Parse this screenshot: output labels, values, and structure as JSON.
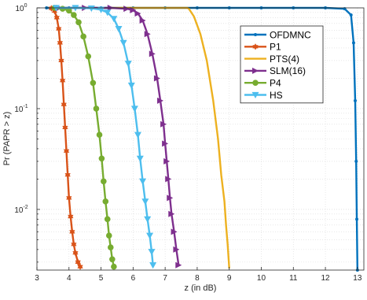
{
  "chart_data": {
    "type": "line",
    "title": "",
    "xlabel": "z (in dB)",
    "ylabel": "Pr (PAPR > z)",
    "xlim": [
      3,
      13.2
    ],
    "ylim": [
      0.0025,
      1
    ],
    "yscale": "log",
    "grid": true,
    "legend_position": "top-right",
    "x_ticks": [
      3,
      4,
      5,
      6,
      7,
      8,
      9,
      10,
      11,
      12,
      13
    ],
    "x_tick_labels": [
      "3",
      "4",
      "5",
      "6",
      "7",
      "8",
      "9",
      "10",
      "11",
      "12",
      "13"
    ],
    "y_ticks": [
      0.01,
      0.1,
      1
    ],
    "y_tick_base": "10",
    "y_tick_exponents": [
      "-2",
      "-1",
      "0"
    ],
    "series": [
      {
        "name": "OFDMNC",
        "color": "#0072bd",
        "marker": "dot",
        "x": [
          3.3,
          4,
          5,
          6,
          7,
          8,
          9,
          10,
          11,
          12,
          12.6,
          12.8,
          12.88,
          12.93,
          12.96,
          12.98,
          13.0
        ],
        "y": [
          1,
          1,
          1,
          1,
          1,
          1,
          1,
          1,
          1,
          1,
          0.98,
          0.85,
          0.45,
          0.12,
          0.03,
          0.008,
          0.0025
        ]
      },
      {
        "name": "P1",
        "color": "#d95319",
        "marker": "hexagram",
        "x": [
          3.45,
          3.55,
          3.62,
          3.68,
          3.72,
          3.76,
          3.8,
          3.84,
          3.88,
          3.92,
          3.96,
          4.0,
          4.05,
          4.1,
          4.15,
          4.2,
          4.28,
          4.35
        ],
        "y": [
          0.99,
          0.93,
          0.8,
          0.62,
          0.45,
          0.3,
          0.19,
          0.11,
          0.065,
          0.038,
          0.022,
          0.013,
          0.0085,
          0.006,
          0.0045,
          0.0037,
          0.003,
          0.0027
        ]
      },
      {
        "name": "PTS(4)",
        "color": "#edb120",
        "marker": "none",
        "x": [
          5.3,
          6,
          7,
          7.7,
          7.75,
          7.9,
          8.1,
          8.3,
          8.5,
          8.65,
          8.75,
          8.85,
          8.9,
          8.95,
          9.0
        ],
        "y": [
          1,
          1,
          1,
          1,
          0.97,
          0.82,
          0.55,
          0.3,
          0.12,
          0.05,
          0.022,
          0.012,
          0.007,
          0.0045,
          0.0026
        ]
      },
      {
        "name": "SLM(16)",
        "color": "#7e2f8e",
        "marker": "triangle-right",
        "x": [
          3.7,
          4.5,
          5.3,
          5.8,
          6.0,
          6.15,
          6.3,
          6.45,
          6.6,
          6.75,
          6.85,
          6.95,
          7.0,
          7.05,
          7.1,
          7.15,
          7.2,
          7.28,
          7.35,
          7.42
        ],
        "y": [
          1,
          1,
          1,
          0.98,
          0.95,
          0.88,
          0.75,
          0.55,
          0.35,
          0.2,
          0.12,
          0.07,
          0.045,
          0.03,
          0.02,
          0.013,
          0.009,
          0.006,
          0.004,
          0.0028
        ]
      },
      {
        "name": "P4",
        "color": "#77ac30",
        "marker": "circle",
        "x": [
          3.55,
          3.8,
          4.0,
          4.15,
          4.3,
          4.45,
          4.6,
          4.75,
          4.85,
          4.95,
          5.02,
          5.08,
          5.14,
          5.2,
          5.25,
          5.3,
          5.35,
          5.4
        ],
        "y": [
          1,
          0.98,
          0.94,
          0.85,
          0.72,
          0.52,
          0.33,
          0.18,
          0.1,
          0.055,
          0.032,
          0.019,
          0.012,
          0.008,
          0.0055,
          0.0042,
          0.0032,
          0.0027
        ]
      },
      {
        "name": "HS",
        "color": "#4dbeee",
        "marker": "triangle-down",
        "x": [
          3.6,
          4.2,
          4.7,
          5.0,
          5.2,
          5.4,
          5.55,
          5.7,
          5.85,
          5.95,
          6.05,
          6.15,
          6.22,
          6.3,
          6.38,
          6.45,
          6.52,
          6.58,
          6.62
        ],
        "y": [
          1,
          1,
          0.99,
          0.96,
          0.9,
          0.78,
          0.62,
          0.45,
          0.28,
          0.17,
          0.1,
          0.055,
          0.032,
          0.019,
          0.012,
          0.008,
          0.0055,
          0.0038,
          0.0028
        ]
      }
    ]
  }
}
